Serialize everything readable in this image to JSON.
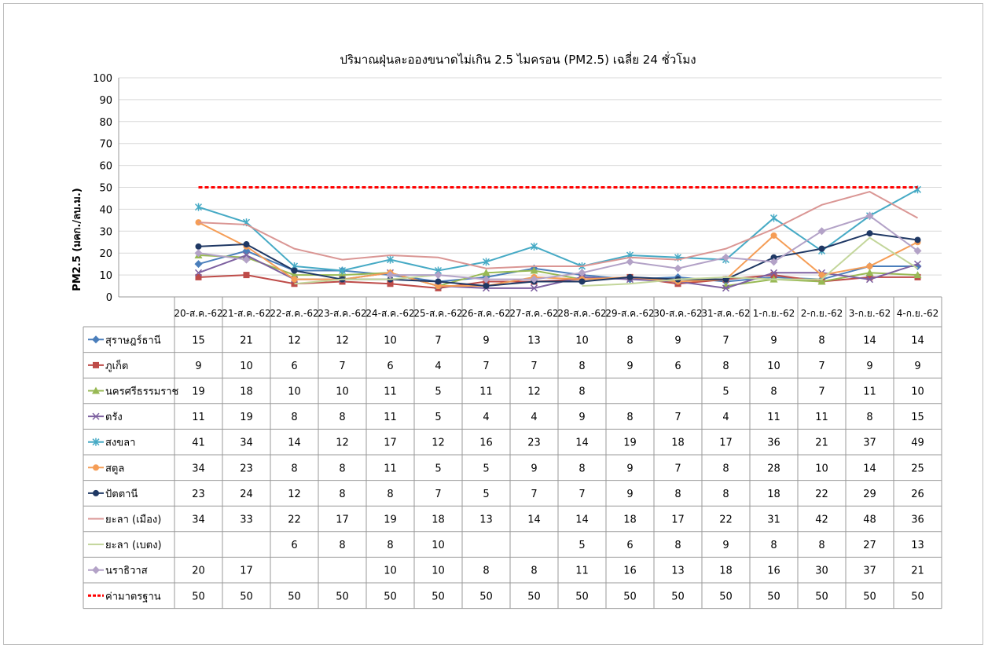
{
  "chart_data": {
    "type": "line",
    "title": "ปริมาณฝุ่นละอองขนาดไม่เกิน 2.5 ไมครอน (PM2.5) เฉลี่ย 24 ชั่วโมง",
    "ylabel": "PM2.5 (มคก./ลบ.ม.)",
    "ylim": [
      0,
      100
    ],
    "yticks": [
      0,
      10,
      20,
      30,
      40,
      50,
      60,
      70,
      80,
      90,
      100
    ],
    "grid": "horizontal",
    "legend": "data-table-rows",
    "categories": [
      "20-ส.ค.-62",
      "21-ส.ค.-62",
      "22-ส.ค.-62",
      "23-ส.ค.-62",
      "24-ส.ค.-62",
      "25-ส.ค.-62",
      "26-ส.ค.-62",
      "27-ส.ค.-62",
      "28-ส.ค.-62",
      "29-ส.ค.-62",
      "30-ส.ค.-62",
      "31-ส.ค.-62",
      "1-ก.ย.-62",
      "2-ก.ย.-62",
      "3-ก.ย.-62",
      "4-ก.ย.-62"
    ],
    "series": [
      {
        "name": "สุราษฎร์ธานี",
        "color": "#4a7ebb",
        "marker": "diamond",
        "values": [
          15,
          21,
          12,
          12,
          10,
          7,
          9,
          13,
          10,
          8,
          9,
          7,
          9,
          8,
          14,
          14
        ]
      },
      {
        "name": "ภูเก็ต",
        "color": "#be4b48",
        "marker": "square",
        "values": [
          9,
          10,
          6,
          7,
          6,
          4,
          7,
          7,
          8,
          9,
          6,
          8,
          10,
          7,
          9,
          9
        ]
      },
      {
        "name": "นครศรีธรรมราช",
        "color": "#98b954",
        "marker": "triangle",
        "values": [
          19,
          18,
          10,
          10,
          11,
          5,
          11,
          12,
          8,
          null,
          null,
          5,
          8,
          7,
          11,
          10
        ]
      },
      {
        "name": "ตรัง",
        "color": "#7d60a0",
        "marker": "x",
        "values": [
          11,
          19,
          8,
          8,
          11,
          5,
          4,
          4,
          9,
          8,
          7,
          4,
          11,
          11,
          8,
          15
        ]
      },
      {
        "name": "สงขลา",
        "color": "#46aac5",
        "marker": "star",
        "values": [
          41,
          34,
          14,
          12,
          17,
          12,
          16,
          23,
          14,
          19,
          18,
          17,
          36,
          21,
          37,
          49
        ]
      },
      {
        "name": "สตูล",
        "color": "#f59d56",
        "marker": "circle",
        "values": [
          34,
          23,
          8,
          8,
          11,
          5,
          5,
          9,
          8,
          9,
          7,
          8,
          28,
          10,
          14,
          25
        ]
      },
      {
        "name": "ปัตตานี",
        "color": "#1f3864",
        "marker": "circle",
        "values": [
          23,
          24,
          12,
          8,
          8,
          7,
          5,
          7,
          7,
          9,
          8,
          8,
          18,
          22,
          29,
          26
        ]
      },
      {
        "name": "ยะลา (เมือง)",
        "color": "#da9694",
        "marker": "none",
        "values": [
          34,
          33,
          22,
          17,
          19,
          18,
          13,
          14,
          14,
          18,
          17,
          22,
          31,
          42,
          48,
          36
        ]
      },
      {
        "name": "ยะลา (เบตง)",
        "color": "#c3d69b",
        "marker": "none",
        "values": [
          null,
          null,
          6,
          8,
          8,
          10,
          null,
          null,
          5,
          6,
          8,
          9,
          8,
          8,
          27,
          13
        ]
      },
      {
        "name": "นราธิวาส",
        "color": "#b3a2c7",
        "marker": "diamond",
        "values": [
          20,
          17,
          null,
          null,
          10,
          10,
          8,
          8,
          11,
          16,
          13,
          18,
          16,
          30,
          37,
          21
        ]
      },
      {
        "name": "ค่ามาตรฐาน",
        "color": "#ff0000",
        "marker": "none",
        "dashed": true,
        "values": [
          50,
          50,
          50,
          50,
          50,
          50,
          50,
          50,
          50,
          50,
          50,
          50,
          50,
          50,
          50,
          50
        ]
      }
    ]
  }
}
